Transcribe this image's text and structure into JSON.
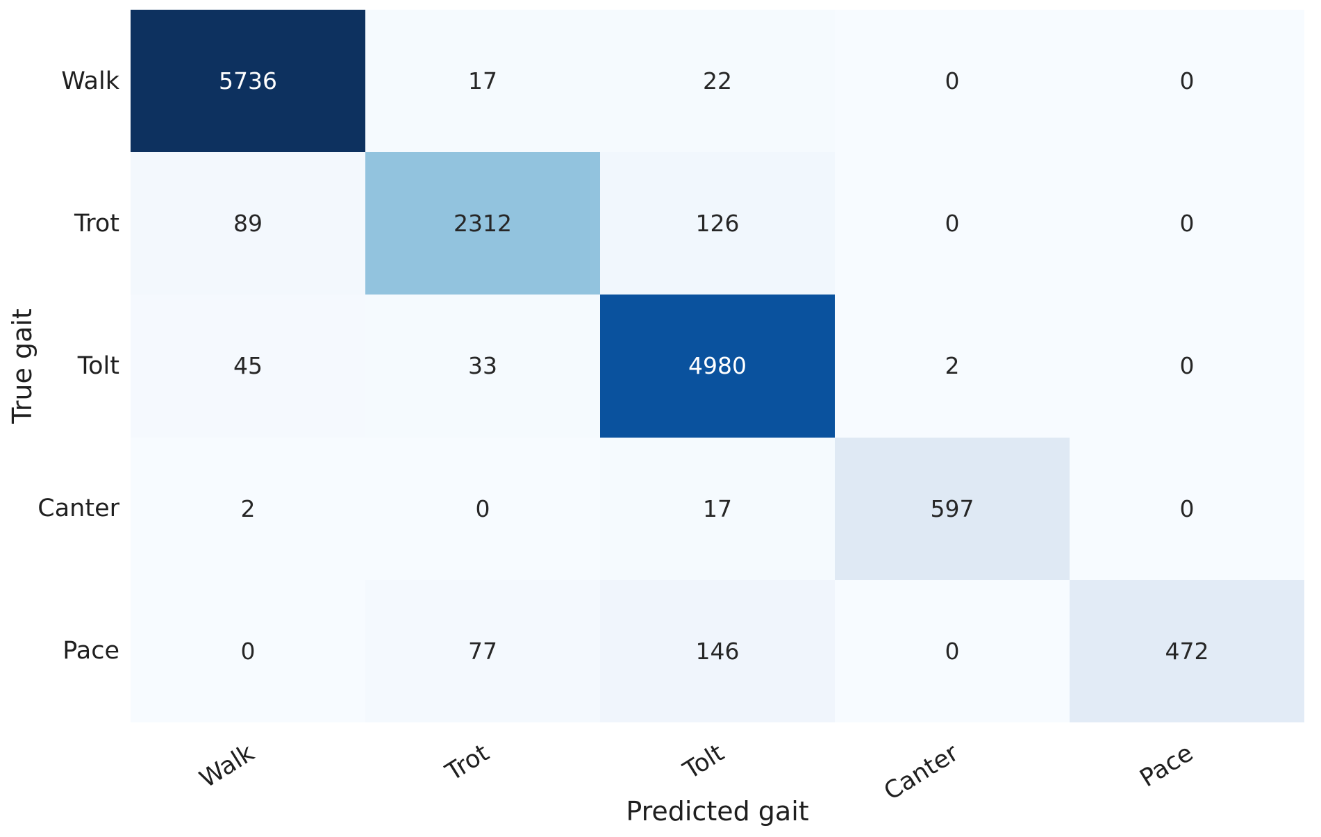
{
  "figure": {
    "background": "#ffffff",
    "kind": "confusion-matrix-heatmap"
  },
  "chart_data": {
    "type": "heatmap",
    "title": "",
    "xlabel": "Predicted gait",
    "ylabel": "True gait",
    "x_tick_labels": [
      "Walk",
      "Trot",
      "Tolt",
      "Canter",
      "Pace"
    ],
    "y_tick_labels": [
      "Walk",
      "Trot",
      "Tolt",
      "Canter",
      "Pace"
    ],
    "colormap": "Blues",
    "vmin": 0,
    "vmax": 5736,
    "grid": false,
    "legend": "none",
    "rows": [
      {
        "label": "Walk",
        "values": [
          5736,
          17,
          22,
          0,
          0
        ]
      },
      {
        "label": "Trot",
        "values": [
          89,
          2312,
          126,
          0,
          0
        ]
      },
      {
        "label": "Tolt",
        "values": [
          45,
          33,
          4980,
          2,
          0
        ]
      },
      {
        "label": "Canter",
        "values": [
          2,
          0,
          17,
          597,
          0
        ]
      },
      {
        "label": "Pace",
        "values": [
          0,
          77,
          146,
          0,
          472
        ]
      }
    ],
    "cell_colors": [
      [
        "#0d315f",
        "#f5fafe",
        "#f5fafe",
        "#f7fbff",
        "#f7fbff"
      ],
      [
        "#f3f8fd",
        "#92c3de",
        "#f1f7fd",
        "#f7fbff",
        "#f7fbff"
      ],
      [
        "#f5f9fe",
        "#f5fafe",
        "#0a529e",
        "#f7fbff",
        "#f7fbff"
      ],
      [
        "#f7fbff",
        "#f7fbff",
        "#f5fafe",
        "#dfe9f4",
        "#f7fbff"
      ],
      [
        "#f7fbff",
        "#f4f9fe",
        "#f0f5fc",
        "#f7fbff",
        "#e2ebf6"
      ]
    ],
    "cell_text_colors": [
      [
        "#ffffff",
        "#262626",
        "#262626",
        "#262626",
        "#262626"
      ],
      [
        "#262626",
        "#262626",
        "#262626",
        "#262626",
        "#262626"
      ],
      [
        "#262626",
        "#262626",
        "#ffffff",
        "#262626",
        "#262626"
      ],
      [
        "#262626",
        "#262626",
        "#262626",
        "#262626",
        "#262626"
      ],
      [
        "#262626",
        "#262626",
        "#262626",
        "#262626",
        "#262626"
      ]
    ]
  }
}
